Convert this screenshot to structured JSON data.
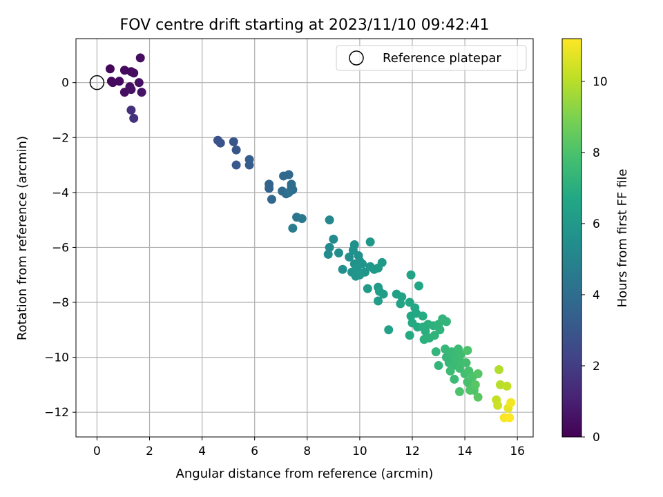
{
  "chart_data": {
    "type": "scatter",
    "title": "FOV centre drift starting at 2023/11/10 09:42:41",
    "xlabel": "Angular distance from reference (arcmin)",
    "ylabel": "Rotation from reference (arcmin)",
    "xlim": [
      -0.8,
      16.6
    ],
    "ylim": [
      -12.9,
      1.6
    ],
    "xticks": [
      0,
      2,
      4,
      6,
      8,
      10,
      12,
      14,
      16
    ],
    "yticks": [
      0,
      -2,
      -4,
      -6,
      -8,
      -10,
      -12
    ],
    "grid": true,
    "legend": {
      "placement": "top-right",
      "entries": [
        "Reference platepar"
      ]
    },
    "reference_point": {
      "x": 0,
      "y": 0,
      "name": "Reference platepar"
    },
    "colorbar": {
      "label": "Hours from first FF file",
      "range": [
        0,
        11.2
      ],
      "ticks": [
        0,
        2,
        4,
        6,
        8,
        10
      ],
      "colormap": "viridis"
    },
    "points": [
      [
        0.5,
        0.5,
        0.2
      ],
      [
        1.05,
        0.45,
        0.3
      ],
      [
        1.3,
        0.4,
        0.3
      ],
      [
        1.4,
        0.35,
        0.4
      ],
      [
        1.65,
        0.9,
        0.4
      ],
      [
        0.55,
        0.05,
        0.2
      ],
      [
        0.85,
        0.05,
        0.3
      ],
      [
        1.25,
        -0.15,
        0.4
      ],
      [
        1.6,
        0,
        0.5
      ],
      [
        1.05,
        -0.35,
        0.4
      ],
      [
        1.3,
        -0.25,
        0.5
      ],
      [
        1.7,
        -0.35,
        0.6
      ],
      [
        0.6,
        0,
        0.3
      ],
      [
        1.3,
        -1.0,
        1.5
      ],
      [
        1.4,
        -1.3,
        1.6
      ],
      [
        4.6,
        -2.1,
        2.8
      ],
      [
        4.7,
        -2.2,
        2.9
      ],
      [
        5.2,
        -2.15,
        3.0
      ],
      [
        5.3,
        -2.45,
        3.0
      ],
      [
        5.3,
        -3.0,
        3.1
      ],
      [
        5.8,
        -2.8,
        3.3
      ],
      [
        5.8,
        -3.0,
        3.3
      ],
      [
        6.55,
        -3.7,
        3.6
      ],
      [
        6.55,
        -3.85,
        3.6
      ],
      [
        6.65,
        -4.25,
        3.7
      ],
      [
        7.1,
        -3.4,
        3.8
      ],
      [
        7.3,
        -3.35,
        3.8
      ],
      [
        7.05,
        -3.95,
        3.9
      ],
      [
        7.2,
        -4.05,
        3.9
      ],
      [
        7.4,
        -3.8,
        4.0
      ],
      [
        7.45,
        -3.9,
        4.0
      ],
      [
        7.4,
        -3.7,
        4.0
      ],
      [
        7.3,
        -4.0,
        4.1
      ],
      [
        7.6,
        -4.9,
        4.4
      ],
      [
        7.8,
        -4.95,
        4.5
      ],
      [
        7.45,
        -5.3,
        4.6
      ],
      [
        8.85,
        -5.0,
        5.2
      ],
      [
        9.0,
        -5.7,
        5.3
      ],
      [
        8.85,
        -6.0,
        5.3
      ],
      [
        8.8,
        -6.25,
        5.3
      ],
      [
        9.2,
        -6.2,
        5.4
      ],
      [
        9.35,
        -6.8,
        5.5
      ],
      [
        9.6,
        -6.35,
        5.5
      ],
      [
        9.8,
        -5.9,
        5.6
      ],
      [
        9.75,
        -6.1,
        5.6
      ],
      [
        9.95,
        -6.3,
        5.6
      ],
      [
        9.8,
        -6.6,
        5.7
      ],
      [
        9.7,
        -6.9,
        5.7
      ],
      [
        10.0,
        -6.5,
        5.7
      ],
      [
        9.9,
        -6.8,
        5.8
      ],
      [
        10.1,
        -6.6,
        5.8
      ],
      [
        10.2,
        -6.9,
        5.8
      ],
      [
        9.85,
        -7.05,
        5.8
      ],
      [
        10.0,
        -7.0,
        5.9
      ],
      [
        10.4,
        -5.8,
        5.9
      ],
      [
        10.4,
        -6.7,
        5.9
      ],
      [
        10.55,
        -6.8,
        6.0
      ],
      [
        10.7,
        -6.75,
        6.0
      ],
      [
        10.85,
        -6.55,
        6.0
      ],
      [
        10.3,
        -7.5,
        6.1
      ],
      [
        10.7,
        -7.45,
        6.1
      ],
      [
        10.75,
        -7.6,
        6.2
      ],
      [
        10.9,
        -7.7,
        6.2
      ],
      [
        10.7,
        -7.95,
        6.2
      ],
      [
        11.1,
        -9.0,
        6.4
      ],
      [
        11.4,
        -7.7,
        6.4
      ],
      [
        11.55,
        -8.05,
        6.5
      ],
      [
        11.6,
        -7.8,
        6.5
      ],
      [
        11.95,
        -7.0,
        6.5
      ],
      [
        12.25,
        -7.4,
        6.6
      ],
      [
        11.9,
        -8.0,
        6.6
      ],
      [
        12.1,
        -8.2,
        6.7
      ],
      [
        11.95,
        -8.5,
        6.7
      ],
      [
        12.15,
        -8.4,
        6.7
      ],
      [
        12.0,
        -8.75,
        6.8
      ],
      [
        12.2,
        -8.9,
        6.8
      ],
      [
        11.9,
        -9.2,
        6.8
      ],
      [
        12.4,
        -8.5,
        6.9
      ],
      [
        12.4,
        -8.9,
        7.0
      ],
      [
        12.5,
        -9.05,
        7.0
      ],
      [
        12.6,
        -8.8,
        7.0
      ],
      [
        12.45,
        -9.35,
        7.1
      ],
      [
        12.65,
        -9.3,
        7.1
      ],
      [
        12.8,
        -8.85,
        7.1
      ],
      [
        12.85,
        -9.2,
        7.2
      ],
      [
        13.0,
        -8.8,
        7.2
      ],
      [
        13.05,
        -9.0,
        7.2
      ],
      [
        13.15,
        -8.6,
        7.3
      ],
      [
        13.3,
        -8.7,
        7.3
      ],
      [
        12.9,
        -9.8,
        7.3
      ],
      [
        13.0,
        -10.3,
        7.3
      ],
      [
        13.25,
        -9.7,
        7.4
      ],
      [
        13.3,
        -10.0,
        7.4
      ],
      [
        13.4,
        -10.2,
        7.4
      ],
      [
        13.5,
        -9.8,
        7.5
      ],
      [
        13.55,
        -10.3,
        7.5
      ],
      [
        13.6,
        -9.95,
        7.5
      ],
      [
        13.7,
        -10.1,
        7.6
      ],
      [
        13.75,
        -9.7,
        7.6
      ],
      [
        13.45,
        -10.5,
        7.6
      ],
      [
        13.6,
        -10.8,
        7.6
      ],
      [
        13.8,
        -10.4,
        7.7
      ],
      [
        13.9,
        -10.2,
        7.7
      ],
      [
        13.85,
        -9.9,
        7.7
      ],
      [
        14.05,
        -10.2,
        7.8
      ],
      [
        14.0,
        -10.6,
        7.8
      ],
      [
        14.1,
        -10.9,
        7.9
      ],
      [
        14.15,
        -10.5,
        7.9
      ],
      [
        14.2,
        -11.0,
        7.9
      ],
      [
        14.3,
        -10.7,
        8.0
      ],
      [
        14.35,
        -11.2,
        8.1
      ],
      [
        14.2,
        -11.2,
        8.1
      ],
      [
        13.8,
        -11.25,
        8.0
      ],
      [
        14.1,
        -9.75,
        8.0
      ],
      [
        14.5,
        -10.6,
        8.2
      ],
      [
        14.5,
        -11.45,
        8.3
      ],
      [
        14.4,
        -11.0,
        8.3
      ],
      [
        15.3,
        -10.45,
        9.9
      ],
      [
        15.35,
        -11.0,
        10.0
      ],
      [
        15.6,
        -11.05,
        10.1
      ],
      [
        15.2,
        -11.55,
        10.2
      ],
      [
        15.25,
        -11.75,
        10.3
      ],
      [
        15.65,
        -11.85,
        10.8
      ],
      [
        15.75,
        -11.65,
        11.0
      ],
      [
        15.5,
        -12.2,
        11.1
      ],
      [
        15.7,
        -12.2,
        11.2
      ]
    ]
  }
}
